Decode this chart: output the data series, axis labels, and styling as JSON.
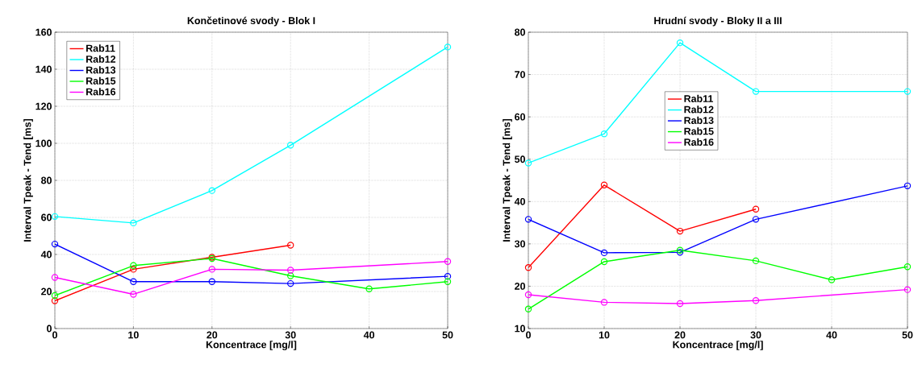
{
  "chart_data": [
    {
      "type": "line",
      "title": "Končetinové svody - Blok I",
      "xlabel": "Koncentrace  [mg/l]",
      "ylabel": "Interval Tpeak - Tend  [ms]",
      "xlim": [
        0,
        50
      ],
      "ylim": [
        0,
        160
      ],
      "xticks": [
        0,
        10,
        20,
        30,
        40,
        50
      ],
      "yticks": [
        0,
        20,
        40,
        60,
        80,
        100,
        120,
        140,
        160
      ],
      "grid": true,
      "legend": "top left",
      "marker": "circle",
      "line_style": "solid",
      "series": [
        {
          "name": "Rab11",
          "color": "#ff0000",
          "x": [
            0,
            10,
            20,
            30
          ],
          "values": [
            15,
            32,
            38.5,
            45
          ]
        },
        {
          "name": "Rab12",
          "color": "#00ffff",
          "x": [
            0,
            10,
            20,
            30,
            50
          ],
          "values": [
            60.5,
            57,
            74.5,
            99,
            152
          ]
        },
        {
          "name": "Rab13",
          "color": "#0000ff",
          "x": [
            0,
            10,
            20,
            30,
            50
          ],
          "values": [
            45.6,
            25.3,
            25.3,
            24.3,
            28.2
          ]
        },
        {
          "name": "Rab15",
          "color": "#00ff00",
          "x": [
            0,
            10,
            20,
            30,
            40,
            50
          ],
          "values": [
            17.8,
            34,
            37.8,
            28.5,
            21.4,
            25.3
          ]
        },
        {
          "name": "Rab16",
          "color": "#ff00ff",
          "x": [
            0,
            10,
            20,
            30,
            50
          ],
          "values": [
            27.6,
            18.5,
            32,
            31.5,
            36.2
          ]
        }
      ]
    },
    {
      "type": "line",
      "title": "Hrudní svody - Bloky II a III",
      "xlabel": "Koncentrace  [mg/l]",
      "ylabel": "Interval Tpeak - Tend  [ms]",
      "xlim": [
        0,
        50
      ],
      "ylim": [
        10,
        80
      ],
      "xticks": [
        0,
        10,
        20,
        30,
        40,
        50
      ],
      "yticks": [
        10,
        20,
        30,
        40,
        50,
        60,
        70,
        80
      ],
      "grid": true,
      "legend": "top",
      "marker": "circle",
      "line_style": "solid",
      "series": [
        {
          "name": "Rab11",
          "color": "#ff0000",
          "x": [
            0,
            10,
            20,
            30
          ],
          "values": [
            24.4,
            43.9,
            33,
            38.2
          ]
        },
        {
          "name": "Rab12",
          "color": "#00ffff",
          "x": [
            0,
            10,
            20,
            30,
            50
          ],
          "values": [
            49.1,
            56,
            77.5,
            66,
            66
          ]
        },
        {
          "name": "Rab13",
          "color": "#0000ff",
          "x": [
            0,
            10,
            20,
            30,
            50
          ],
          "values": [
            35.8,
            27.9,
            28,
            35.8,
            43.7
          ]
        },
        {
          "name": "Rab15",
          "color": "#00ff00",
          "x": [
            0,
            10,
            20,
            30,
            40,
            50
          ],
          "values": [
            14.6,
            25.8,
            28.5,
            26,
            21.5,
            24.6
          ]
        },
        {
          "name": "Rab16",
          "color": "#ff00ff",
          "x": [
            0,
            10,
            20,
            30,
            50
          ],
          "values": [
            18,
            16.2,
            15.9,
            16.6,
            19.2
          ]
        }
      ]
    }
  ]
}
